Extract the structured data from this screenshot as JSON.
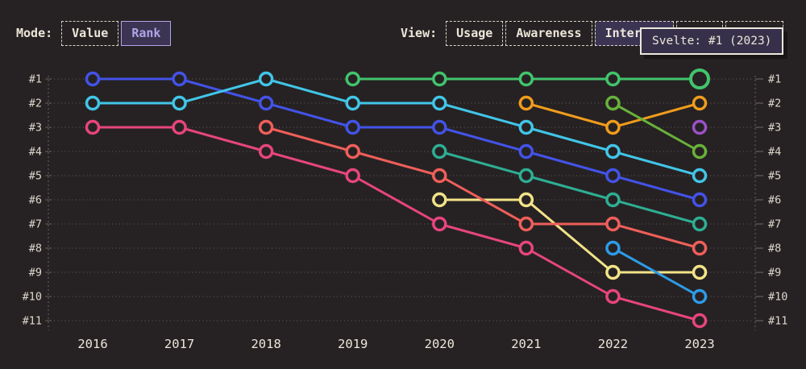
{
  "controls": {
    "mode": {
      "label": "Mode:",
      "options": [
        {
          "label": "Value",
          "selected": false
        },
        {
          "label": "Rank",
          "selected": true
        }
      ]
    },
    "view": {
      "label": "View:",
      "options": [
        {
          "label": "Usage",
          "selected": false
        },
        {
          "label": "Awareness",
          "selected": false
        },
        {
          "label": "Interest",
          "selected": true
        },
        {
          "label": "",
          "selected": false
        },
        {
          "label": "ty",
          "selected": false
        }
      ]
    }
  },
  "tooltip": {
    "text": "Svelte: #1 (2023)"
  },
  "colors": {
    "background": "#262223",
    "text": "#ece6da",
    "grid": "#8a837a",
    "selected_fill": "#3b3553",
    "selected_accent": "#b3a3e8",
    "tooltip_bg": "#36304a",
    "tooltip_border": "#ece7dd"
  },
  "chart_data": {
    "type": "line",
    "subtype": "bump-rank",
    "title": "",
    "x": [
      2016,
      2017,
      2018,
      2019,
      2020,
      2021,
      2022,
      2023
    ],
    "rank_labels": [
      "#1",
      "#2",
      "#3",
      "#4",
      "#5",
      "#6",
      "#7",
      "#8",
      "#9",
      "#10",
      "#11"
    ],
    "ylim": [
      1,
      11
    ],
    "grid": "dotted",
    "series": [
      {
        "name": "pink",
        "color": "#e8457e",
        "ranks": [
          3,
          3,
          4,
          5,
          7,
          8,
          10,
          11
        ]
      },
      {
        "name": "yellow",
        "color": "#f2e388",
        "ranks": [
          null,
          null,
          null,
          null,
          6,
          6,
          9,
          9
        ]
      },
      {
        "name": "salmon",
        "color": "#f05f5a",
        "ranks": [
          null,
          null,
          3,
          4,
          5,
          7,
          7,
          8
        ]
      },
      {
        "name": "teal",
        "color": "#2eae93",
        "ranks": [
          null,
          null,
          null,
          null,
          4,
          5,
          6,
          7
        ]
      },
      {
        "name": "indigo",
        "color": "#4353e8",
        "ranks": [
          1,
          1,
          2,
          3,
          3,
          4,
          5,
          6
        ]
      },
      {
        "name": "cyan",
        "color": "#41c6e8",
        "ranks": [
          2,
          2,
          1,
          2,
          2,
          3,
          4,
          5
        ]
      },
      {
        "name": "amber",
        "color": "#f09c1c",
        "ranks": [
          null,
          null,
          null,
          null,
          null,
          2,
          3,
          2
        ]
      },
      {
        "name": "olive",
        "color": "#68b23a",
        "ranks": [
          null,
          null,
          null,
          null,
          null,
          null,
          2,
          4
        ]
      },
      {
        "name": "dodger",
        "color": "#2d9ce8",
        "ranks": [
          null,
          null,
          null,
          null,
          null,
          null,
          8,
          10
        ]
      },
      {
        "name": "green",
        "color": "#42c46c",
        "ranks": [
          null,
          null,
          null,
          1,
          1,
          1,
          1,
          1
        ]
      },
      {
        "name": "purple",
        "color": "#9d50c8",
        "ranks": [
          null,
          null,
          null,
          null,
          null,
          null,
          null,
          3
        ]
      }
    ],
    "highlight": {
      "series": "green",
      "x": 2023,
      "rank": 1,
      "label": "Svelte: #1 (2023)"
    }
  }
}
